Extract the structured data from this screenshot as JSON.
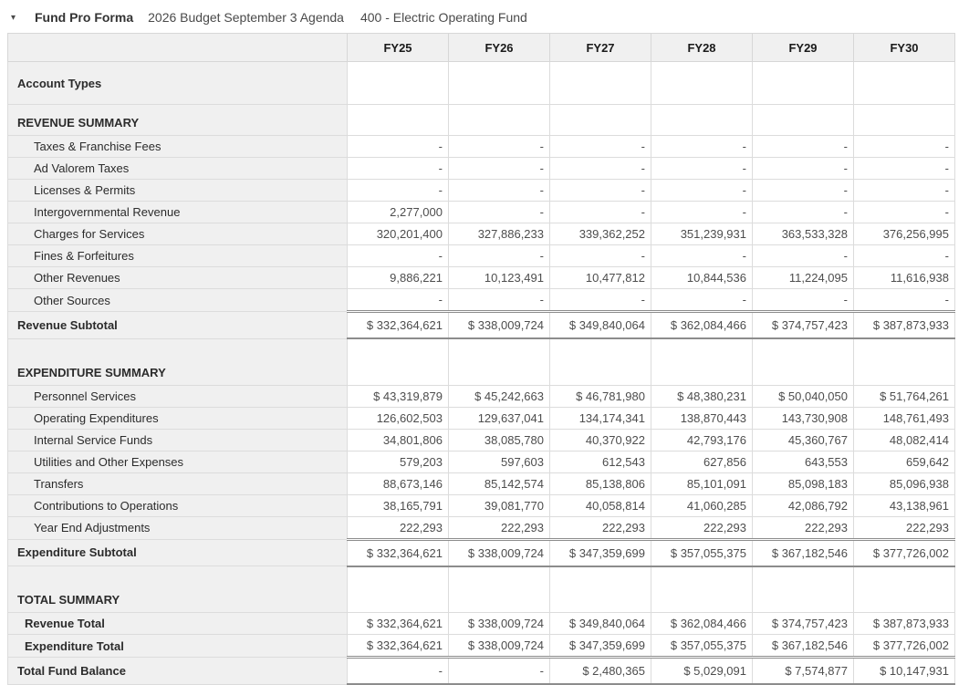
{
  "header": {
    "collapse_icon": "▾",
    "collapse_icon_name": "collapse-arrow-icon",
    "title": "Fund Pro Forma",
    "budget_name": "2026 Budget September 3 Agenda",
    "fund_name": "400 - Electric Operating Fund"
  },
  "colors": {
    "header_bg": "#f0f0f0",
    "label_bg": "#f0f0f0",
    "light_border": "#dcdcdc",
    "dark_border": "#8c8c8c",
    "text": "#2b2b2b",
    "number_text": "#4d4d4d"
  },
  "table": {
    "columns": [
      "FY25",
      "FY26",
      "FY27",
      "FY28",
      "FY29",
      "FY30"
    ],
    "rows": [
      {
        "label": "Account Types",
        "type": "account",
        "values": [
          "",
          "",
          "",
          "",
          "",
          ""
        ]
      },
      {
        "label": "REVENUE SUMMARY",
        "type": "section",
        "values": [
          "",
          "",
          "",
          "",
          "",
          ""
        ]
      },
      {
        "label": "Taxes & Franchise Fees",
        "type": "data",
        "values": [
          "-",
          "-",
          "-",
          "-",
          "-",
          "-"
        ]
      },
      {
        "label": "Ad Valorem Taxes",
        "type": "data",
        "values": [
          "-",
          "-",
          "-",
          "-",
          "-",
          "-"
        ]
      },
      {
        "label": "Licenses & Permits",
        "type": "data",
        "values": [
          "-",
          "-",
          "-",
          "-",
          "-",
          "-"
        ]
      },
      {
        "label": "Intergovernmental Revenue",
        "type": "data",
        "values": [
          "2,277,000",
          "-",
          "-",
          "-",
          "-",
          "-"
        ]
      },
      {
        "label": "Charges for Services",
        "type": "data",
        "values": [
          "320,201,400",
          "327,886,233",
          "339,362,252",
          "351,239,931",
          "363,533,328",
          "376,256,995"
        ]
      },
      {
        "label": "Fines & Forfeitures",
        "type": "data",
        "values": [
          "-",
          "-",
          "-",
          "-",
          "-",
          "-"
        ]
      },
      {
        "label": "Other Revenues",
        "type": "data",
        "values": [
          "9,886,221",
          "10,123,491",
          "10,477,812",
          "10,844,536",
          "11,224,095",
          "11,616,938"
        ]
      },
      {
        "label": "Other Sources",
        "type": "data",
        "values": [
          "-",
          "-",
          "-",
          "-",
          "-",
          "-"
        ]
      },
      {
        "label": "Revenue Subtotal",
        "type": "subtotal",
        "values": [
          "$ 332,364,621",
          "$ 338,009,724",
          "$ 349,840,064",
          "$ 362,084,466",
          "$ 374,757,423",
          "$ 387,873,933"
        ]
      },
      {
        "label": "EXPENDITURE SUMMARY",
        "type": "sectiongap",
        "values": [
          "",
          "",
          "",
          "",
          "",
          ""
        ]
      },
      {
        "label": "Personnel Services",
        "type": "data",
        "values": [
          "$ 43,319,879",
          "$ 45,242,663",
          "$ 46,781,980",
          "$ 48,380,231",
          "$ 50,040,050",
          "$ 51,764,261"
        ]
      },
      {
        "label": "Operating Expenditures",
        "type": "data",
        "values": [
          "126,602,503",
          "129,637,041",
          "134,174,341",
          "138,870,443",
          "143,730,908",
          "148,761,493"
        ]
      },
      {
        "label": "Internal Service Funds",
        "type": "data",
        "values": [
          "34,801,806",
          "38,085,780",
          "40,370,922",
          "42,793,176",
          "45,360,767",
          "48,082,414"
        ]
      },
      {
        "label": "Utilities and Other Expenses",
        "type": "data",
        "values": [
          "579,203",
          "597,603",
          "612,543",
          "627,856",
          "643,553",
          "659,642"
        ]
      },
      {
        "label": "Transfers",
        "type": "data",
        "values": [
          "88,673,146",
          "85,142,574",
          "85,138,806",
          "85,101,091",
          "85,098,183",
          "85,096,938"
        ]
      },
      {
        "label": "Contributions to Operations",
        "type": "data",
        "values": [
          "38,165,791",
          "39,081,770",
          "40,058,814",
          "41,060,285",
          "42,086,792",
          "43,138,961"
        ]
      },
      {
        "label": "Year End Adjustments",
        "type": "data",
        "values": [
          "222,293",
          "222,293",
          "222,293",
          "222,293",
          "222,293",
          "222,293"
        ]
      },
      {
        "label": "Expenditure Subtotal",
        "type": "subtotal",
        "values": [
          "$ 332,364,621",
          "$ 338,009,724",
          "$ 347,359,699",
          "$ 357,055,375",
          "$ 367,182,546",
          "$ 377,726,002"
        ]
      },
      {
        "label": "TOTAL SUMMARY",
        "type": "sectiongap",
        "values": [
          "",
          "",
          "",
          "",
          "",
          ""
        ]
      },
      {
        "label": "Revenue Total",
        "type": "total-first",
        "values": [
          "$ 332,364,621",
          "$ 338,009,724",
          "$ 349,840,064",
          "$ 362,084,466",
          "$ 374,757,423",
          "$ 387,873,933"
        ]
      },
      {
        "label": "Expenditure Total",
        "type": "total",
        "values": [
          "$ 332,364,621",
          "$ 338,009,724",
          "$ 347,359,699",
          "$ 357,055,375",
          "$ 367,182,546",
          "$ 377,726,002"
        ]
      },
      {
        "label": "Total Fund Balance",
        "type": "grand",
        "values": [
          "-",
          "-",
          "$ 2,480,365",
          "$ 5,029,091",
          "$ 7,574,877",
          "$ 10,147,931"
        ]
      }
    ]
  }
}
